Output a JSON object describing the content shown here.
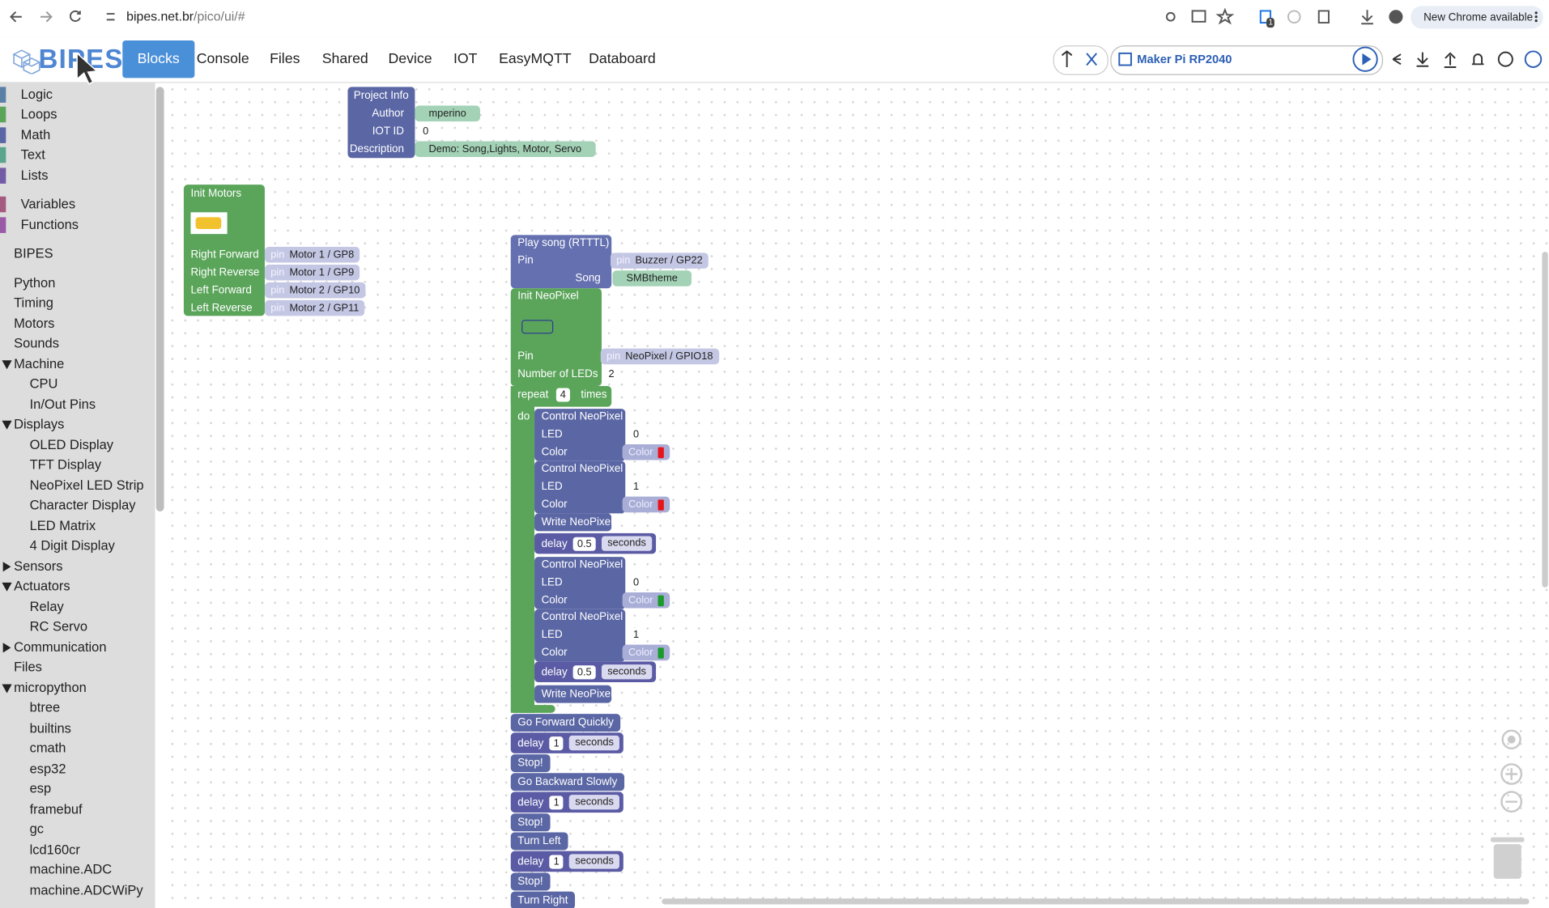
{
  "browser": {
    "url_host": "bipes.net.br",
    "url_path": "/pico/ui/#",
    "extension_badge": 1,
    "update_button": "New Chrome available"
  },
  "app": {
    "logo": "BIPES",
    "tabs": [
      "Blocks",
      "Console",
      "Files",
      "Shared",
      "Device",
      "IOT",
      "EasyMQTT",
      "Databoard"
    ],
    "device": "Maker Pi RP2040"
  },
  "sidebar": [
    "Logic",
    "Loops",
    "Math",
    "Text",
    "Lists",
    "Variables",
    "Functions",
    "BIPES",
    "Python",
    "Timing",
    "Motors",
    "Sounds",
    "Machine",
    "CPU",
    "In/Out Pins",
    "Displays",
    "OLED Display",
    "TFT Display",
    "NeoPixel LED Strip",
    "Character Display",
    "LED Matrix",
    "4 Digit Display",
    "Sensors",
    "Actuators",
    "Relay",
    "RC Servo",
    "Communication",
    "Files",
    "micropython",
    "btree",
    "builtins",
    "cmath",
    "esp32",
    "esp",
    "framebuf",
    "gc",
    "lcd160cr",
    "machine.ADC",
    "machine.ADCWiPy"
  ],
  "blocks": {
    "pin_prefix": "pin",
    "project_info": {
      "title": "Project Info",
      "rows": [
        {
          "label": "Author",
          "value": "mperino"
        },
        {
          "label": "IOT ID",
          "value": 0
        },
        {
          "label": "Description",
          "value": "Demo: Song,Lights, Motor, Servo"
        }
      ]
    },
    "init_motors": {
      "title": "Init Motors",
      "rows": [
        {
          "label": "Right Forward",
          "pin": "Motor 1 / GP8"
        },
        {
          "label": "Right Reverse",
          "pin": "Motor 1 / GP9"
        },
        {
          "label": "Left Forward",
          "pin": "Motor 2 / GP10"
        },
        {
          "label": "Left Reverse",
          "pin": "Motor 2 / GP11"
        }
      ]
    },
    "play_song": {
      "title": "Play song (RTTTL)",
      "pin_label": "Pin",
      "pin": "Buzzer / GP22",
      "song_label": "Song",
      "song": "SMBtheme"
    },
    "init_neopixel": {
      "title": "Init NeoPixel",
      "pin_label": "Pin",
      "pin": "NeoPixel / GPIO18",
      "count_label": "Number of LEDs",
      "count": 2
    },
    "repeat": {
      "label": "repeat",
      "times": 4,
      "times_label": "times",
      "do_label": "do",
      "body": [
        {
          "type": "control",
          "title": "Control NeoPixel",
          "led_label": "LED",
          "led": 0,
          "color_label": "Color",
          "color_text": "Color",
          "swatch": "#e8141b"
        },
        {
          "type": "control",
          "title": "Control NeoPixel",
          "led_label": "LED",
          "led": 1,
          "color_label": "Color",
          "color_text": "Color",
          "swatch": "#e8141b"
        },
        {
          "type": "write",
          "title": "Write NeoPixel"
        },
        {
          "type": "delay",
          "label": "delay",
          "value": 0.5,
          "unit": "seconds"
        },
        {
          "type": "control",
          "title": "Control NeoPixel",
          "led_label": "LED",
          "led": 0,
          "color_label": "Color",
          "color_text": "Color",
          "swatch": "#1a9a2a"
        },
        {
          "type": "control",
          "title": "Control NeoPixel",
          "led_label": "LED",
          "led": 1,
          "color_label": "Color",
          "color_text": "Color",
          "swatch": "#1a9a2a"
        },
        {
          "type": "delay",
          "label": "delay",
          "value": 0.5,
          "unit": "seconds"
        },
        {
          "type": "write",
          "title": "Write NeoPixel"
        }
      ]
    },
    "sequence": [
      {
        "type": "action",
        "title": "Go Forward Quickly"
      },
      {
        "type": "delay",
        "label": "delay",
        "value": 1,
        "unit": "seconds"
      },
      {
        "type": "action",
        "title": "Stop!"
      },
      {
        "type": "action",
        "title": "Go Backward Slowly"
      },
      {
        "type": "delay",
        "label": "delay",
        "value": 1,
        "unit": "seconds"
      },
      {
        "type": "action",
        "title": "Stop!"
      },
      {
        "type": "action",
        "title": "Turn Left"
      },
      {
        "type": "delay",
        "label": "delay",
        "value": 1,
        "unit": "seconds"
      },
      {
        "type": "action",
        "title": "Stop!"
      },
      {
        "type": "action",
        "title": "Turn Right"
      }
    ]
  }
}
